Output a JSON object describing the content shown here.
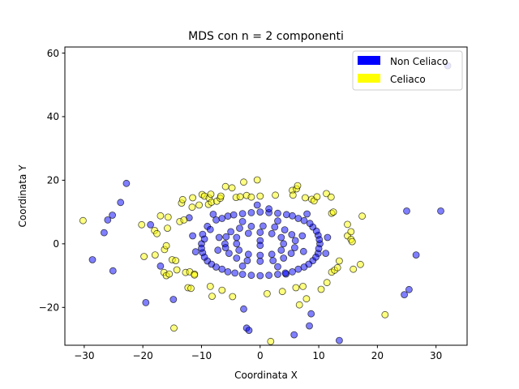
{
  "chart_data": {
    "type": "scatter",
    "title": "MDS con n = 2 componenti",
    "xlabel": "Coordinata X",
    "ylabel": "Coordinata Y",
    "xlim": [
      -33.3,
      35.3
    ],
    "ylim": [
      -31.9,
      61.9
    ],
    "xticks": [
      -30,
      -20,
      -10,
      0,
      10,
      20,
      30
    ],
    "yticks": [
      -20,
      0,
      20,
      40,
      60
    ],
    "grid": false,
    "legend_position": "top-right",
    "series": [
      {
        "name": "Non Celiaco",
        "color": "#0000ff",
        "points": [
          [
            -22.8,
            19
          ],
          [
            -23.8,
            13
          ],
          [
            -25.2,
            9
          ],
          [
            -26,
            7.5
          ],
          [
            -26.6,
            3.5
          ],
          [
            -28.6,
            -5
          ],
          [
            -25.1,
            -8.5
          ],
          [
            -19.5,
            -18.5
          ],
          [
            -14.8,
            -17.5
          ],
          [
            -17,
            -7
          ],
          [
            -18.7,
            6
          ],
          [
            -12.1,
            8.2
          ],
          [
            -2.8,
            -20.5
          ],
          [
            -2.3,
            -26.5
          ],
          [
            -1.9,
            -27.2
          ],
          [
            4.4,
            -9.5
          ],
          [
            5.8,
            -28.6
          ],
          [
            8.4,
            -25.8
          ],
          [
            8.7,
            -22
          ],
          [
            13.5,
            -30.4
          ],
          [
            25,
            10.3
          ],
          [
            30.8,
            10.3
          ],
          [
            26.6,
            -3.5
          ],
          [
            25.4,
            -14.4
          ],
          [
            24.6,
            -16
          ],
          [
            32,
            56
          ]
        ],
        "ring_points": [
          [
            -10,
            0
          ],
          [
            -9.8,
            3
          ],
          [
            -9,
            5.5
          ],
          [
            -7.5,
            7.5
          ],
          [
            -5.5,
            8.7
          ],
          [
            -3,
            9.5
          ],
          [
            0,
            10
          ],
          [
            3,
            9.6
          ],
          [
            5.5,
            8.8
          ],
          [
            7.5,
            7.3
          ],
          [
            9,
            5.3
          ],
          [
            9.9,
            2.7
          ],
          [
            10.2,
            0
          ],
          [
            9.9,
            -3
          ],
          [
            9,
            -5.3
          ],
          [
            7.5,
            -7.3
          ],
          [
            5.5,
            -8.8
          ],
          [
            3,
            -9.6
          ],
          [
            0,
            -10
          ],
          [
            -3,
            -9.6
          ],
          [
            -5.5,
            -8.8
          ],
          [
            -7.5,
            -7.3
          ],
          [
            -9,
            -5.4
          ],
          [
            -9.8,
            -2.8
          ],
          [
            -9.5,
            1.5
          ],
          [
            -8.5,
            4.5
          ],
          [
            -6.5,
            8
          ],
          [
            -4.5,
            9.1
          ],
          [
            -1.5,
            9.8
          ],
          [
            1.5,
            9.8
          ],
          [
            4.5,
            9.2
          ],
          [
            6.5,
            8
          ],
          [
            8.5,
            6.4
          ],
          [
            9.6,
            4
          ],
          [
            10.1,
            1.3
          ],
          [
            10,
            -1.5
          ],
          [
            9.5,
            -4.2
          ],
          [
            8.3,
            -6.4
          ],
          [
            6.5,
            -8
          ],
          [
            4.3,
            -9.2
          ],
          [
            1.5,
            -9.9
          ],
          [
            -1.5,
            -9.9
          ],
          [
            -4.3,
            -9.2
          ],
          [
            -6.5,
            -8
          ],
          [
            -8.3,
            -6.4
          ],
          [
            -9.5,
            -4.2
          ],
          [
            -10,
            -1.4
          ],
          [
            -6,
            0
          ],
          [
            -5.8,
            2.2
          ],
          [
            -5,
            3.8
          ],
          [
            -3.5,
            4.9
          ],
          [
            -1.5,
            5.5
          ],
          [
            0.5,
            5.6
          ],
          [
            2.5,
            5.3
          ],
          [
            4.2,
            4.4
          ],
          [
            5.4,
            2.9
          ],
          [
            6,
            1
          ],
          [
            5.9,
            -1.2
          ],
          [
            5.3,
            -3
          ],
          [
            4,
            -4.5
          ],
          [
            2.2,
            -5.3
          ],
          [
            0,
            -5.5
          ],
          [
            -2.2,
            -5.3
          ],
          [
            -4,
            -4.5
          ],
          [
            -5.3,
            -3
          ],
          [
            -5.9,
            -1.2
          ],
          [
            -4,
            2
          ],
          [
            -2,
            3.3
          ],
          [
            0,
            3.6
          ],
          [
            2,
            3.2
          ],
          [
            3.6,
            2
          ],
          [
            4,
            0
          ],
          [
            3.6,
            -2
          ],
          [
            2,
            -3.3
          ],
          [
            0,
            -3.6
          ],
          [
            -2,
            -3.3
          ],
          [
            -3.6,
            -2
          ],
          [
            -4,
            0
          ],
          [
            -7,
            2
          ],
          [
            -7.2,
            -2
          ],
          [
            7.2,
            2.5
          ],
          [
            7.4,
            -2.4
          ],
          [
            -3,
            7
          ],
          [
            3,
            7.2
          ],
          [
            -3,
            -7
          ],
          [
            3,
            -7.2
          ],
          [
            0,
            1
          ],
          [
            0,
            -0.5
          ],
          [
            -11.5,
            2.5
          ],
          [
            11.5,
            2
          ],
          [
            -11,
            -2.5
          ],
          [
            11.2,
            -3
          ],
          [
            -8,
            9.3
          ],
          [
            8,
            9.4
          ],
          [
            -0.5,
            12.2
          ],
          [
            1.5,
            11
          ]
        ]
      },
      {
        "name": "Celiaco",
        "color": "#ffff00",
        "points": [
          [
            -30.2,
            7.3
          ],
          [
            -20.2,
            6
          ],
          [
            -19.8,
            -4
          ],
          [
            -18,
            4.2
          ],
          [
            -17.6,
            3.2
          ],
          [
            -17.9,
            -3.5
          ],
          [
            -17,
            8.8
          ],
          [
            -16.3,
            -1.8
          ],
          [
            -16,
            -0.6
          ],
          [
            -15.7,
            8.4
          ],
          [
            -15.8,
            4.9
          ],
          [
            -16.4,
            -9
          ],
          [
            -16,
            -10
          ],
          [
            -15.5,
            -9.5
          ],
          [
            -15,
            -5
          ],
          [
            -14.4,
            -5.3
          ],
          [
            -14.2,
            -8.2
          ],
          [
            -14.7,
            -26.5
          ],
          [
            -13.7,
            7
          ],
          [
            -13.4,
            12.8
          ],
          [
            -13.2,
            13.9
          ],
          [
            -13,
            7.5
          ],
          [
            -12.7,
            -9
          ],
          [
            -12.3,
            -13.8
          ],
          [
            -12,
            -8.8
          ],
          [
            -11.8,
            -14
          ],
          [
            -11.5,
            14.5
          ],
          [
            -11.6,
            11.5
          ],
          [
            -11.2,
            -9.5
          ],
          [
            -11.2,
            -9.8
          ],
          [
            -10.4,
            12.2
          ],
          [
            -9.9,
            15.5
          ],
          [
            -9.5,
            15
          ],
          [
            -8.8,
            12.4
          ],
          [
            -8.7,
            14.4
          ],
          [
            -8.4,
            15.6
          ],
          [
            -8.5,
            -13.4
          ],
          [
            -8.2,
            -16.5
          ],
          [
            -8.3,
            13.1
          ],
          [
            -7.4,
            13.4
          ],
          [
            -6.8,
            14.3
          ],
          [
            -6.5,
            -14.6
          ],
          [
            -6.7,
            15
          ],
          [
            -5.9,
            18
          ],
          [
            -4.8,
            17.6
          ],
          [
            -4.7,
            -16.6
          ],
          [
            -4.1,
            14.6
          ],
          [
            -3.4,
            14.8
          ],
          [
            -2.8,
            19.4
          ],
          [
            -2.3,
            15.2
          ],
          [
            -1.5,
            14.7
          ],
          [
            -0.5,
            20.1
          ],
          [
            0,
            15
          ],
          [
            1.2,
            -15.7
          ],
          [
            2.6,
            15.3
          ],
          [
            3.8,
            -15
          ],
          [
            1.8,
            -30.7
          ],
          [
            5.5,
            16.8
          ],
          [
            5.6,
            15.3
          ],
          [
            6.2,
            17.3
          ],
          [
            6.4,
            18.3
          ],
          [
            6.1,
            -13.8
          ],
          [
            6.7,
            -19.2
          ],
          [
            7.3,
            -13.4
          ],
          [
            7.7,
            14.5
          ],
          [
            7.9,
            -17.3
          ],
          [
            8.8,
            14
          ],
          [
            9.2,
            13.5
          ],
          [
            9.7,
            14.8
          ],
          [
            10.4,
            -14.3
          ],
          [
            11.3,
            15.8
          ],
          [
            11.4,
            -12.2
          ],
          [
            12.1,
            14.7
          ],
          [
            12.2,
            9.6
          ],
          [
            12.5,
            10
          ],
          [
            12.2,
            -8.9
          ],
          [
            12.7,
            -8.3
          ],
          [
            13.2,
            -7.5
          ],
          [
            13.5,
            -5.4
          ],
          [
            14.9,
            6.1
          ],
          [
            14.9,
            2.5
          ],
          [
            15.5,
            1.4
          ],
          [
            15.5,
            3.8
          ],
          [
            15.7,
            0.7
          ],
          [
            15.9,
            -8
          ],
          [
            17.1,
            -6.5
          ],
          [
            17.4,
            8.7
          ],
          [
            21.3,
            -22.3
          ]
        ],
        "ring_points": []
      }
    ]
  }
}
